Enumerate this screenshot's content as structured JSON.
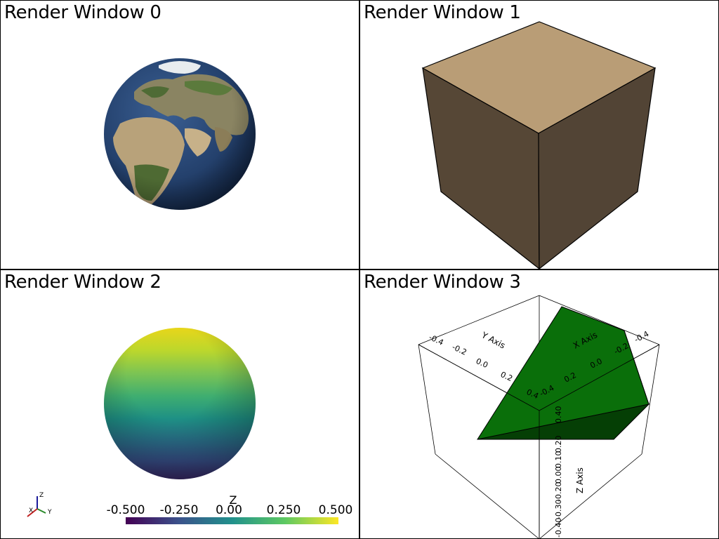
{
  "windows": [
    {
      "title": "Render Window 0"
    },
    {
      "title": "Render Window 1"
    },
    {
      "title": "Render Window 2"
    },
    {
      "title": "Render Window 3"
    }
  ],
  "scalar_bar": {
    "title": "Z",
    "ticks": [
      "-0.500",
      "-0.250",
      "0.00",
      "0.250",
      "0.500"
    ],
    "colormap": "viridis"
  },
  "orientation_axes": {
    "x": "X",
    "y": "Y",
    "z": "Z"
  },
  "bounds_axes": {
    "x_title": "X Axis",
    "y_title": "Y Axis",
    "z_title": "Z Axis",
    "y_ticks": [
      "-0.4",
      "-0.2",
      "0.0",
      "0.2",
      "0.4"
    ],
    "x_ticks": [
      "-0.4",
      "-0.2",
      "0.0",
      "0.2",
      "0.4"
    ],
    "z_ticks": [
      "0.40",
      "0.30",
      "0.20",
      "0.10",
      "0.00",
      "-0.10",
      "-0.20",
      "-0.30",
      "-0.40"
    ]
  },
  "colors": {
    "cube_top": "#b99d76",
    "cube_left": "#564736",
    "cube_right": "#524435",
    "wedge": "#0a6f0a",
    "wedge_dark": "#053f05",
    "ocean": "#23406a"
  }
}
